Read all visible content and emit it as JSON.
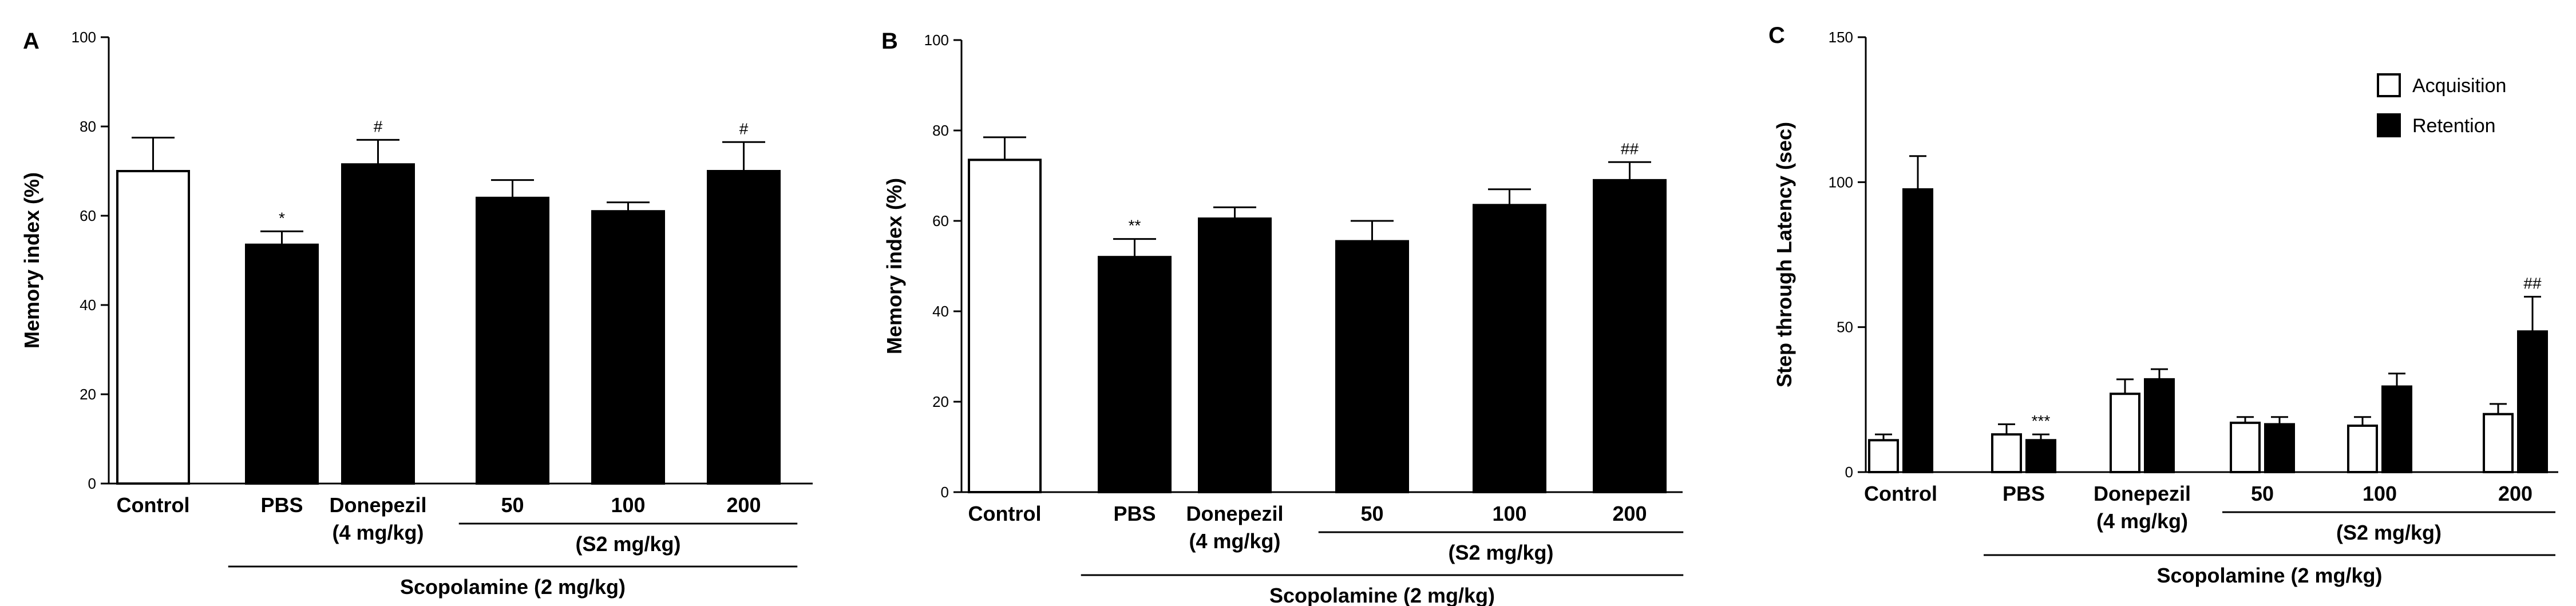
{
  "chart_data": [
    {
      "panel": "A",
      "type": "bar",
      "ylabel": "Memory index (%)",
      "ylim": [
        0,
        100
      ],
      "yticks": [
        "0",
        "20",
        "40",
        "60",
        "80",
        "100"
      ],
      "categories": [
        "Control",
        "PBS",
        "Donepezil",
        "50",
        "100",
        "200"
      ],
      "dose_label": "(4 mg/kg)",
      "group_label": "(S2 mg/kg)",
      "treatment_label": "Scopolamine (2 mg/kg)",
      "values": [
        70,
        53.5,
        71.5,
        64,
        61,
        70
      ],
      "errors": [
        7.5,
        3,
        5.5,
        4,
        2,
        6.5
      ],
      "fills": [
        "#ffffff",
        "#000000",
        "#000000",
        "#000000",
        "#000000",
        "#000000"
      ],
      "significance": [
        "",
        "*",
        "#",
        "",
        "",
        "#"
      ]
    },
    {
      "panel": "B",
      "type": "bar",
      "ylabel": "Memory index (%)",
      "ylim": [
        0,
        100
      ],
      "yticks": [
        "0",
        "20",
        "40",
        "60",
        "80",
        "100"
      ],
      "categories": [
        "Control",
        "PBS",
        "Donepezil",
        "50",
        "100",
        "200"
      ],
      "dose_label": "(4 mg/kg)",
      "group_label": "(S2 mg/kg)",
      "treatment_label": "Scopolamine (2 mg/kg)",
      "values": [
        73.5,
        52,
        60.5,
        55.5,
        63.5,
        69
      ],
      "errors": [
        5,
        4,
        2.5,
        4.5,
        3.5,
        4
      ],
      "fills": [
        "#ffffff",
        "#000000",
        "#000000",
        "#000000",
        "#000000",
        "#000000"
      ],
      "significance": [
        "",
        "**",
        "",
        "",
        "",
        "##"
      ]
    },
    {
      "panel": "C",
      "type": "bar",
      "ylabel": "Step through Latency (sec)",
      "ylim": [
        0,
        150
      ],
      "yticks": [
        "0",
        "50",
        "100",
        "150"
      ],
      "categories": [
        "Control",
        "PBS",
        "Donepezil",
        "50",
        "100",
        "200"
      ],
      "dose_label": "(4 mg/kg)",
      "group_label": "(S2 mg/kg)",
      "treatment_label": "Scopolamine (2 mg/kg)",
      "series": [
        {
          "name": "Acquisition",
          "fill": "#ffffff",
          "values": [
            11,
            13,
            27,
            17,
            16,
            20
          ],
          "errors": [
            2,
            3.5,
            5,
            2,
            3,
            3.5
          ],
          "significance": [
            "",
            "",
            "",
            "",
            "",
            ""
          ]
        },
        {
          "name": "Retention",
          "fill": "#000000",
          "values": [
            97.5,
            11,
            32,
            16.5,
            29.5,
            48.5
          ],
          "errors": [
            11.5,
            2,
            3.5,
            2.5,
            4.5,
            12
          ],
          "significance": [
            "",
            "***",
            "",
            "",
            "",
            "##"
          ]
        }
      ]
    }
  ]
}
